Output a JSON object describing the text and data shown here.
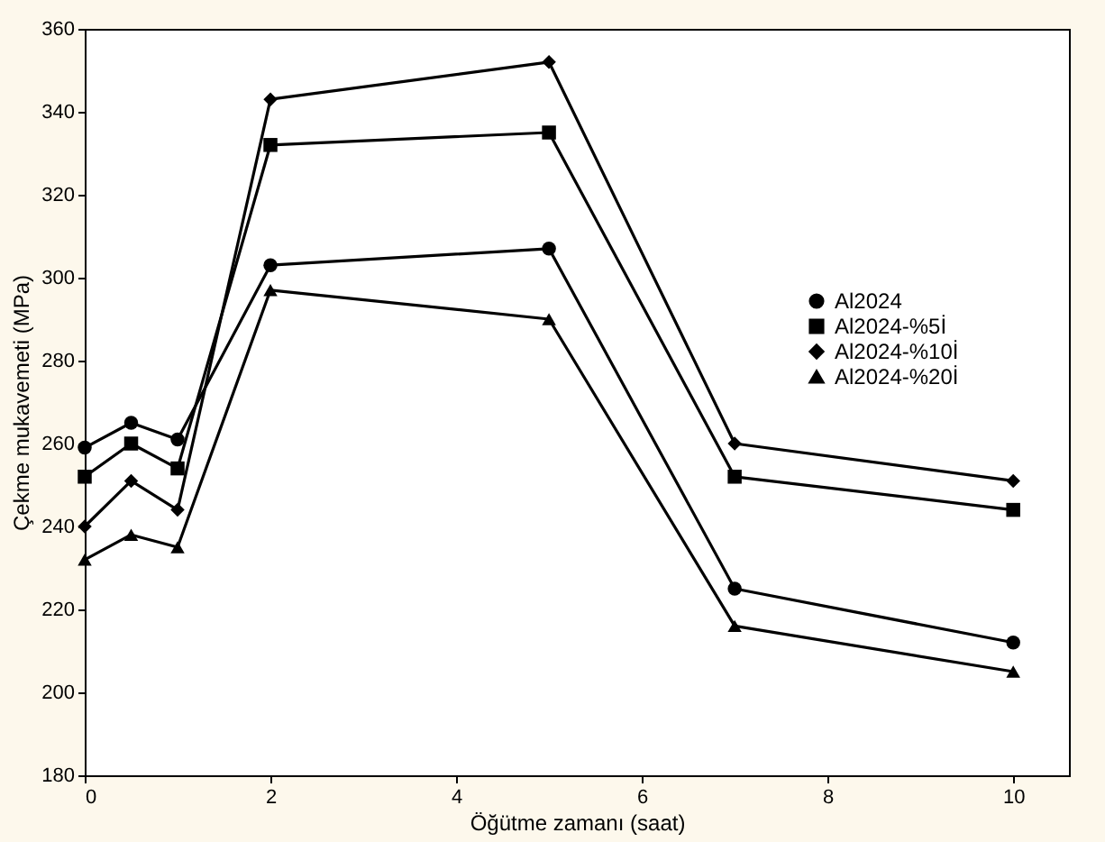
{
  "chart_data": {
    "type": "line",
    "xlabel": "Öğütme zamanı (saat)",
    "ylabel": "Çekme mukavemeti (MPa)",
    "x": [
      0,
      0.5,
      1,
      2,
      5,
      7,
      10
    ],
    "series": [
      {
        "name": "Al2024",
        "color": "#000000",
        "marker": "circle",
        "values": [
          259,
          265,
          261,
          303,
          307,
          225,
          212
        ]
      },
      {
        "name": "Al2024-%5İ",
        "color": "#000000",
        "marker": "square",
        "values": [
          252,
          260,
          254,
          332,
          335,
          252,
          244
        ]
      },
      {
        "name": "Al2024-%10İ",
        "color": "#000000",
        "marker": "diamond",
        "values": [
          240,
          251,
          244,
          343,
          352,
          260,
          251
        ]
      },
      {
        "name": "Al2024-%20İ",
        "color": "#000000",
        "marker": "triangle",
        "values": [
          232,
          238,
          235,
          297,
          290,
          216,
          205
        ]
      }
    ],
    "xlim": [
      0,
      10.6
    ],
    "xticks": [
      0,
      2,
      4,
      6,
      8,
      10
    ],
    "ylim": [
      180,
      360
    ],
    "yticks": [
      180,
      200,
      220,
      240,
      260,
      280,
      300,
      320,
      340,
      360
    ],
    "grid": false,
    "legend": "right",
    "line_style": "solid"
  }
}
